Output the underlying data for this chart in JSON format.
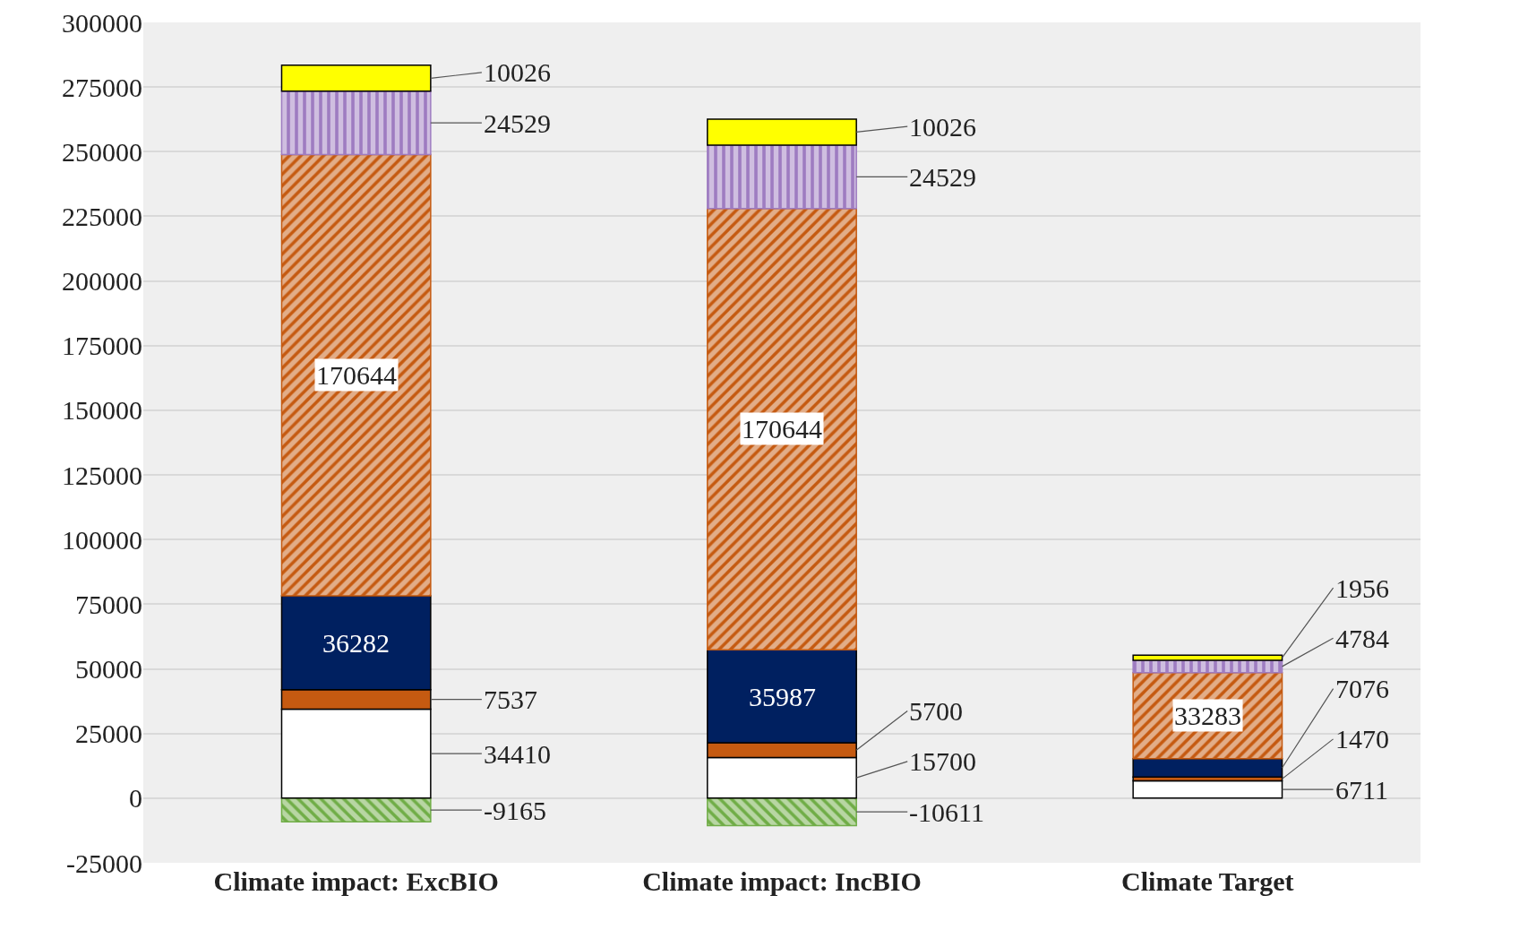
{
  "chart_data": {
    "type": "bar",
    "stacked": true,
    "categories": [
      "Climate impact: ExcBIO",
      "Climate impact: IncBIO",
      "Climate Target"
    ],
    "series": [
      {
        "color": "#70ad47",
        "values": [
          -9165,
          -10611,
          null
        ]
      },
      {
        "color": "#ffffff",
        "values": [
          34410,
          15700,
          6711
        ]
      },
      {
        "color": "#c55a11",
        "values": [
          7537,
          5700,
          1470
        ]
      },
      {
        "color": "#002060",
        "values": [
          36282,
          35987,
          7076
        ]
      },
      {
        "color": "#c55a11",
        "values": [
          170644,
          170644,
          33283
        ]
      },
      {
        "color": "#9e7cc1",
        "values": [
          24529,
          24529,
          4784
        ]
      },
      {
        "color": "#ffff00",
        "values": [
          10026,
          10026,
          1956
        ]
      }
    ],
    "ylim": [
      -25000,
      300000
    ],
    "yticks": [
      -25000,
      0,
      25000,
      50000,
      75000,
      100000,
      125000,
      150000,
      175000,
      200000,
      225000,
      250000,
      275000,
      300000
    ],
    "grid": "y",
    "data_labels": true
  }
}
